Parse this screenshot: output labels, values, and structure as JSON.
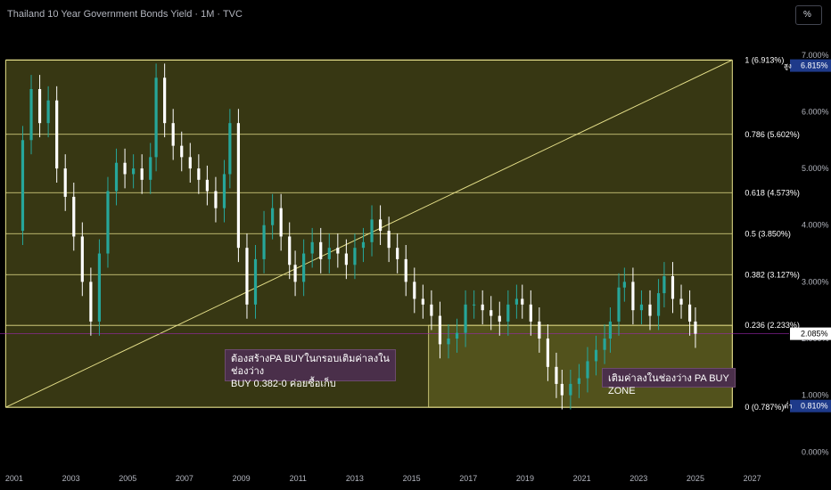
{
  "header": {
    "title": "Thailand 10 Year Government Bonds Yield · 1M · TVC",
    "unit_button": "%"
  },
  "annotations": {
    "note1_line1": "ต้องสร้างPA BUYในกรอบเติมค่าลงในช่องว่าง",
    "note1_line2": "BUY 0.382-0 ค่อยซื้อเก็บ",
    "note2": "เติมค่าลงในช่องว่าง PA BUY ZONE"
  },
  "price_tags": [
    {
      "label": "สูง",
      "value": "6.815%",
      "y": 6.815,
      "bg": "#1e3a8a"
    },
    {
      "label": "",
      "value": "2.085%",
      "y": 2.085,
      "bg": "#ffffff"
    },
    {
      "label": "ต่ำ",
      "value": "0.810%",
      "y": 0.81,
      "bg": "#1e3a8a"
    }
  ],
  "colors": {
    "up": "#26a69a",
    "down": "#ffffff",
    "fib_fill": "#4a4a1a",
    "fib_line": "#e6e08a",
    "trend": "#e6e08a"
  },
  "chart_data": {
    "type": "candlestick",
    "title": "Thailand 10 Year Government Bonds Yield · 1M · TVC",
    "xlabel": "",
    "ylabel": "",
    "x_ticks": [
      "2001",
      "2003",
      "2005",
      "2007",
      "2009",
      "2011",
      "2013",
      "2015",
      "2017",
      "2019",
      "2021",
      "2023",
      "2025",
      "2027"
    ],
    "y_ticks": [
      "0.000%",
      "1.000%",
      "2.000%",
      "3.000%",
      "4.000%",
      "5.000%",
      "6.000%",
      "7.000%"
    ],
    "y_range": [
      -0.2,
      7.5
    ],
    "x_range": [
      2000.5,
      2028.3
    ],
    "fib_levels": [
      {
        "ratio": "1",
        "value": 6.913,
        "label": "1 (6.913%)"
      },
      {
        "ratio": "0.786",
        "value": 5.602,
        "label": "0.786 (5.602%)"
      },
      {
        "ratio": "0.618",
        "value": 4.573,
        "label": "0.618 (4.573%)"
      },
      {
        "ratio": "0.5",
        "value": 3.85,
        "label": "0.5 (3.850%)"
      },
      {
        "ratio": "0.382",
        "value": 3.127,
        "label": "0.382 (3.127%)"
      },
      {
        "ratio": "0.236",
        "value": 2.233,
        "label": "0.236 (2.233%)"
      },
      {
        "ratio": "0",
        "value": 0.787,
        "label": "0 (0.787%)"
      }
    ],
    "fib_range": {
      "x_start": 2000.7,
      "x_end": 2026.3
    },
    "trend_line": [
      [
        2000.7,
        0.787
      ],
      [
        2026.3,
        6.913
      ]
    ],
    "buy_zone": {
      "x_start": 2015.6,
      "x_end": 2026.3,
      "y_low": 0.787,
      "y_high": 2.233
    },
    "series": [
      {
        "points": [
          [
            2001.0,
            3.9
          ],
          [
            2001.3,
            5.5
          ],
          [
            2001.6,
            6.4
          ],
          [
            2001.9,
            5.8
          ],
          [
            2002.2,
            6.2
          ],
          [
            2002.5,
            5.0
          ],
          [
            2002.8,
            4.5
          ],
          [
            2003.1,
            3.8
          ],
          [
            2003.4,
            3.0
          ],
          [
            2003.7,
            2.3
          ],
          [
            2004.0,
            3.5
          ],
          [
            2004.3,
            4.6
          ],
          [
            2004.6,
            5.1
          ],
          [
            2004.9,
            4.9
          ],
          [
            2005.2,
            5.0
          ],
          [
            2005.5,
            4.8
          ],
          [
            2005.8,
            5.2
          ],
          [
            2006.0,
            6.6
          ],
          [
            2006.3,
            5.8
          ],
          [
            2006.6,
            5.4
          ],
          [
            2006.9,
            5.2
          ],
          [
            2007.2,
            5.0
          ],
          [
            2007.5,
            4.8
          ],
          [
            2007.8,
            4.6
          ],
          [
            2008.1,
            4.3
          ],
          [
            2008.4,
            4.9
          ],
          [
            2008.6,
            5.8
          ],
          [
            2008.9,
            3.6
          ],
          [
            2009.2,
            2.6
          ],
          [
            2009.5,
            3.4
          ],
          [
            2009.8,
            4.0
          ],
          [
            2010.1,
            4.3
          ],
          [
            2010.4,
            3.8
          ],
          [
            2010.7,
            3.3
          ],
          [
            2010.9,
            3.0
          ],
          [
            2011.2,
            3.5
          ],
          [
            2011.5,
            3.7
          ],
          [
            2011.8,
            3.4
          ],
          [
            2012.1,
            3.6
          ],
          [
            2012.4,
            3.5
          ],
          [
            2012.7,
            3.3
          ],
          [
            2013.0,
            3.6
          ],
          [
            2013.3,
            3.7
          ],
          [
            2013.6,
            4.1
          ],
          [
            2013.9,
            3.9
          ],
          [
            2014.2,
            3.6
          ],
          [
            2014.5,
            3.4
          ],
          [
            2014.8,
            3.0
          ],
          [
            2015.1,
            2.7
          ],
          [
            2015.4,
            2.6
          ],
          [
            2015.7,
            2.4
          ],
          [
            2016.0,
            1.9
          ],
          [
            2016.3,
            2.0
          ],
          [
            2016.6,
            2.1
          ],
          [
            2016.9,
            2.6
          ],
          [
            2017.2,
            2.6
          ],
          [
            2017.5,
            2.5
          ],
          [
            2017.8,
            2.4
          ],
          [
            2018.1,
            2.3
          ],
          [
            2018.4,
            2.6
          ],
          [
            2018.7,
            2.7
          ],
          [
            2018.9,
            2.6
          ],
          [
            2019.2,
            2.3
          ],
          [
            2019.5,
            2.0
          ],
          [
            2019.8,
            1.5
          ],
          [
            2020.1,
            1.2
          ],
          [
            2020.3,
            1.0
          ],
          [
            2020.6,
            1.2
          ],
          [
            2020.9,
            1.3
          ],
          [
            2021.2,
            1.6
          ],
          [
            2021.5,
            1.8
          ],
          [
            2021.8,
            2.0
          ],
          [
            2022.0,
            2.3
          ],
          [
            2022.3,
            2.9
          ],
          [
            2022.5,
            3.0
          ],
          [
            2022.8,
            2.5
          ],
          [
            2023.1,
            2.6
          ],
          [
            2023.4,
            2.4
          ],
          [
            2023.7,
            2.8
          ],
          [
            2023.9,
            3.1
          ],
          [
            2024.2,
            2.7
          ],
          [
            2024.5,
            2.6
          ],
          [
            2024.8,
            2.3
          ],
          [
            2025.0,
            2.085
          ]
        ]
      }
    ]
  }
}
